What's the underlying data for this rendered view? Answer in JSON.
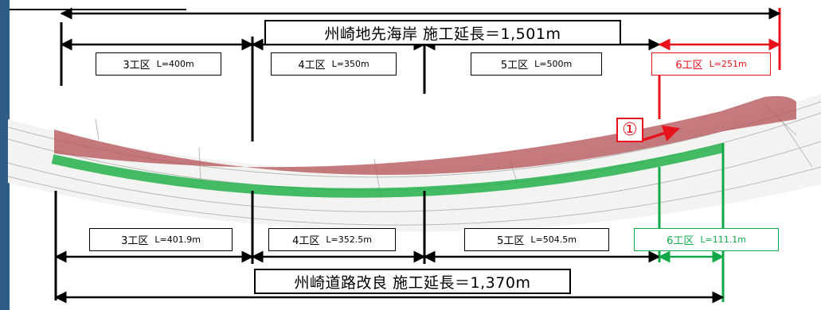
{
  "top": {
    "total_label": "州崎地先海岸 施工延長＝1,501m",
    "sections": [
      {
        "name": "3工区",
        "length": "L=400m"
      },
      {
        "name": "4工区",
        "length": "L=350m"
      },
      {
        "name": "5工区",
        "length": "L=500m"
      },
      {
        "name": "6工区",
        "length": "L=251m"
      }
    ]
  },
  "bottom": {
    "total_label": "州崎道路改良 施工延長＝1,370m",
    "sections": [
      {
        "name": "3工区",
        "length": "L=401.9m"
      },
      {
        "name": "4工区",
        "length": "L=352.5m"
      },
      {
        "name": "5工区",
        "length": "L=504.5m"
      },
      {
        "name": "6工区",
        "length": "L=111.1m"
      }
    ]
  },
  "marker": {
    "label": "①"
  },
  "colors": {
    "frame": "#2f5d86",
    "coast_highlight": "#b5545a",
    "road_highlight": "#22b04b",
    "section6_top": "#e8121c",
    "section6_bottom": "#12a84a",
    "dimension_line": "#000000"
  }
}
